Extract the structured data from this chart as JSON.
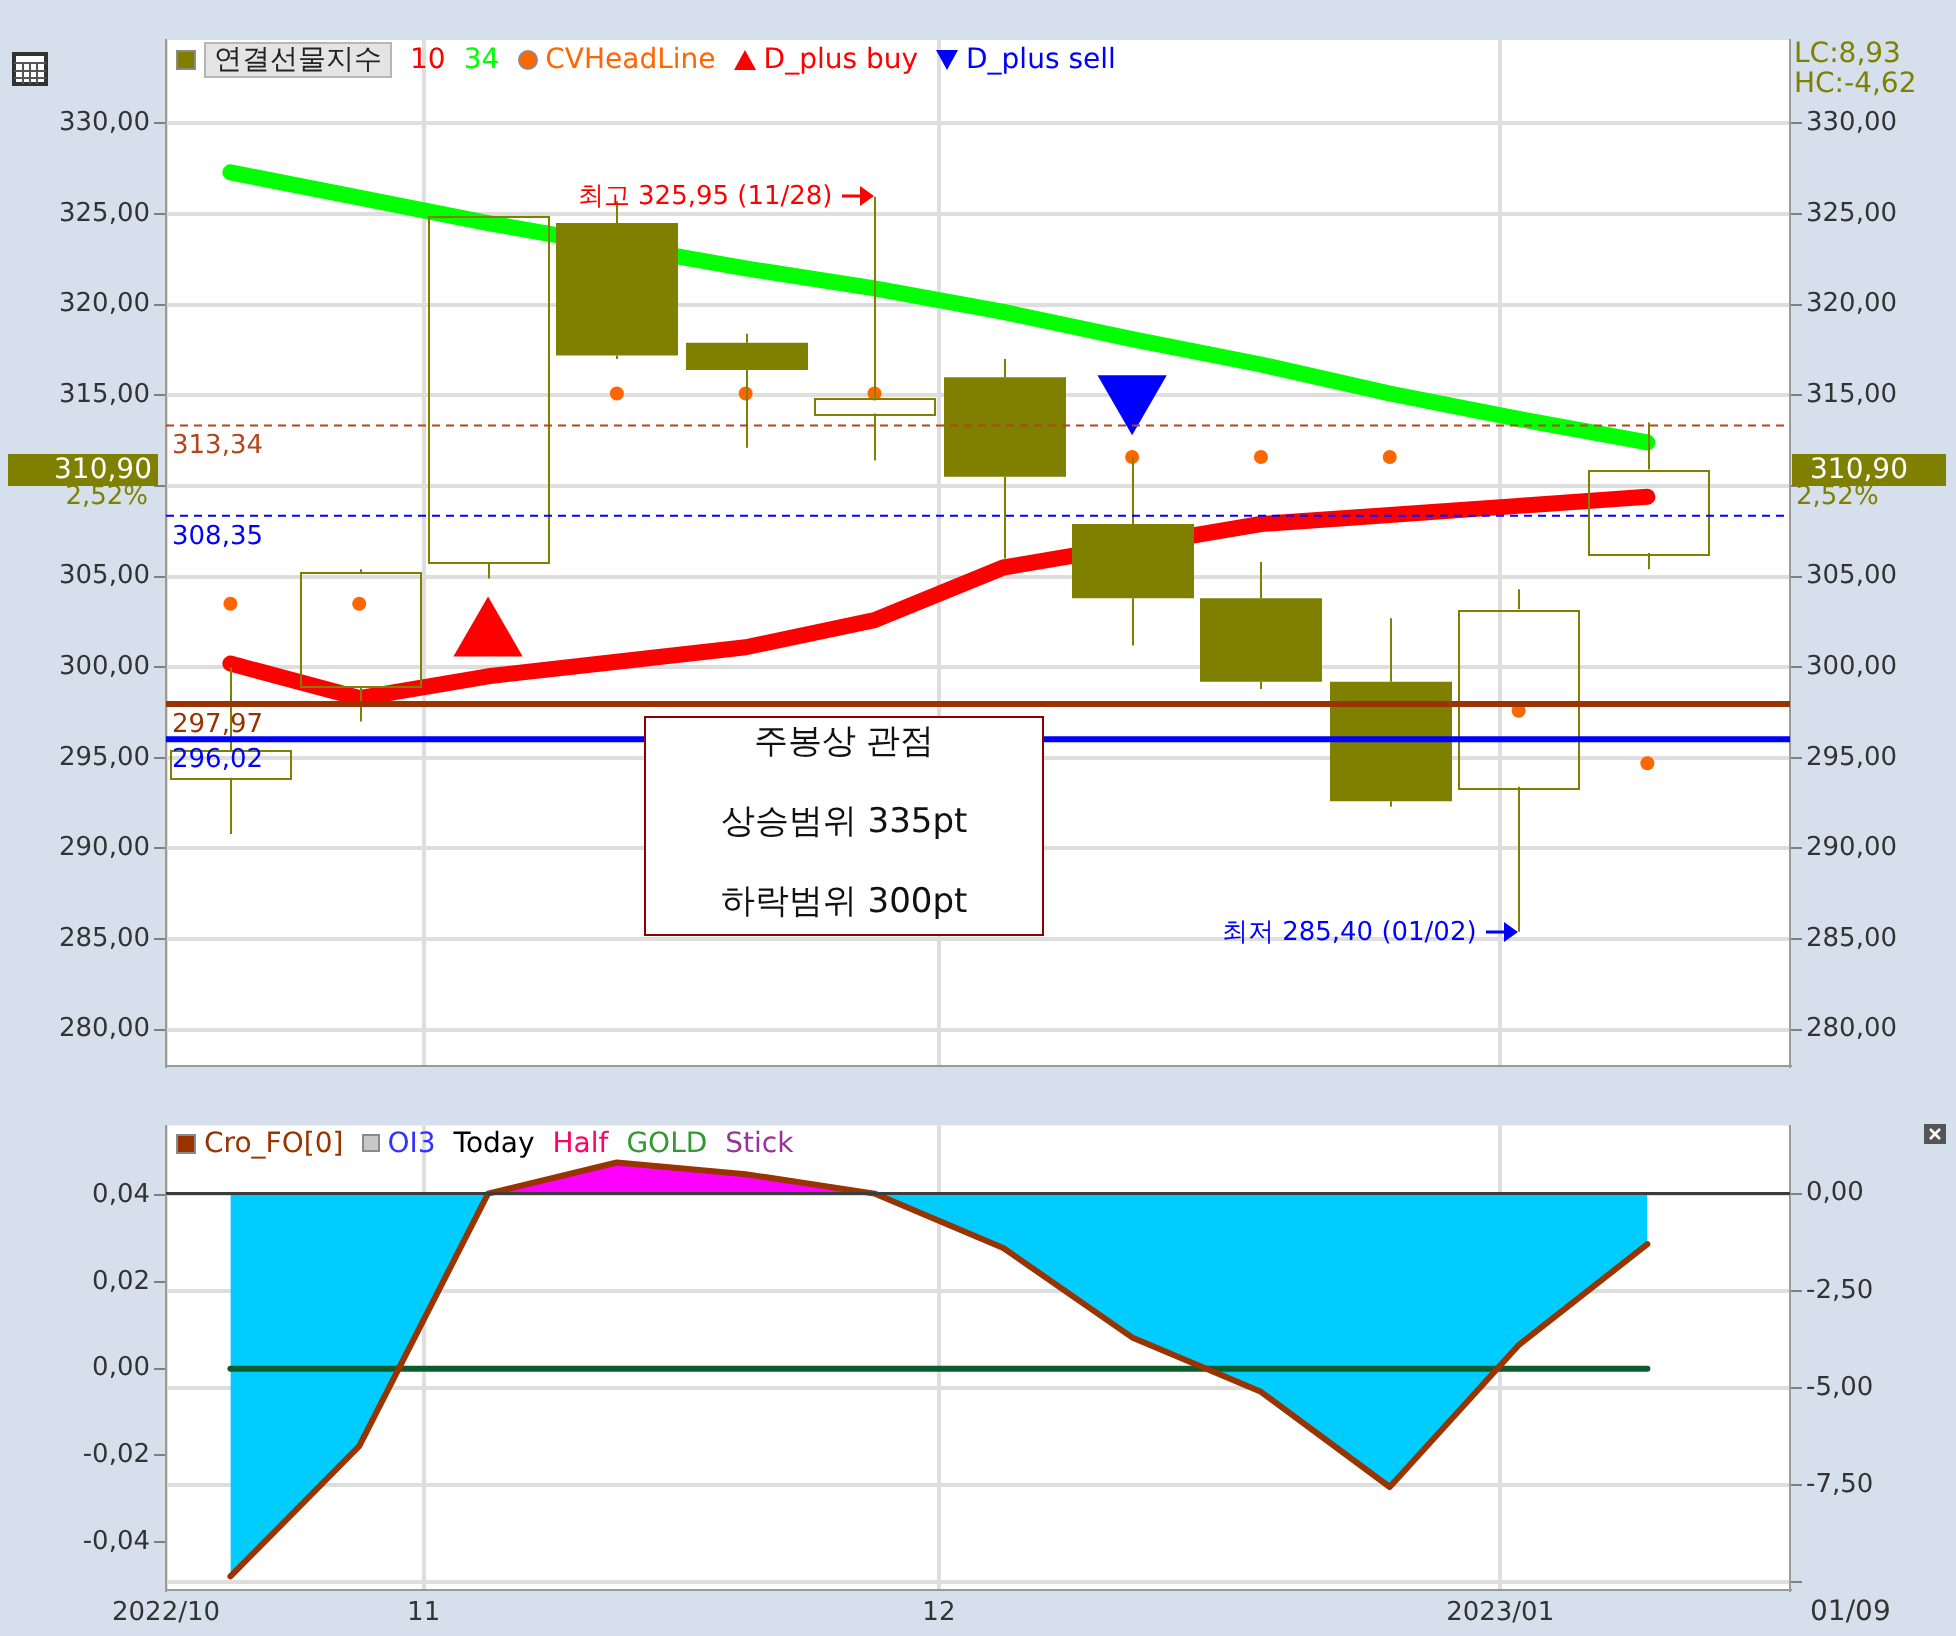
{
  "chart_data": [
    {
      "type": "candlestick",
      "x": [
        "2022-10-24",
        "2022-10-31",
        "2022-11-07",
        "2022-11-14",
        "2022-11-21",
        "2022-11-28",
        "2022-12-05",
        "2022-12-12",
        "2022-12-19",
        "2022-12-26",
        "2023-01-02",
        "2023-01-09"
      ],
      "xlim": [
        "2022-10-20T12:00",
        "2023-01-16T18:00"
      ],
      "xticks": [
        {
          "value": "2022-10-20T12:00",
          "label": null
        },
        {
          "value": "2022-11-03T12:00",
          "label": null
        },
        {
          "value": "2022-12-01T12:00",
          "label": null
        },
        {
          "value": "2023-01-01",
          "label": null
        }
      ],
      "ylim": [
        278,
        334.6
      ],
      "yticks": [
        {
          "value": 330,
          "label": "330,00"
        },
        {
          "value": 325,
          "label": "325,00"
        },
        {
          "value": 320,
          "label": "320,00"
        },
        {
          "value": 315,
          "label": "315,00"
        },
        {
          "value": 310,
          "label": null
        },
        {
          "value": 305,
          "label": "305,00"
        },
        {
          "value": 300,
          "label": "300,00"
        },
        {
          "value": 295,
          "label": "295,00"
        },
        {
          "value": 290,
          "label": "290,00"
        },
        {
          "value": 285,
          "label": "285,00"
        },
        {
          "value": 280,
          "label": "280,00"
        }
      ],
      "y2lim": [
        278,
        334.6
      ],
      "y2ticks": [
        {
          "value": 330,
          "label": "330,00"
        },
        {
          "value": 325,
          "label": "325,00"
        },
        {
          "value": 320,
          "label": "320,00"
        },
        {
          "value": 315,
          "label": "315,00"
        },
        {
          "value": 310,
          "label": null
        },
        {
          "value": 305,
          "label": "305,00"
        },
        {
          "value": 300,
          "label": "300,00"
        },
        {
          "value": 295,
          "label": "295,00"
        },
        {
          "value": 290,
          "label": "290,00"
        },
        {
          "value": 285,
          "label": "285,00"
        },
        {
          "value": 280,
          "label": "280,00"
        }
      ],
      "tick_labels": "y",
      "grid": true,
      "legend": "top left",
      "series": [
        {
          "name": "연결선물지수",
          "color": "#808000",
          "ohlc": [
            [
              293.9,
              300.0,
              290.8,
              295.4
            ],
            [
              298.9,
              305.4,
              297.0,
              305.2
            ],
            [
              305.8,
              324.9,
              304.9,
              324.9
            ],
            [
              324.5,
              325.7,
              317.0,
              317.2
            ],
            [
              317.9,
              318.4,
              312.1,
              316.4
            ],
            [
              314.0,
              325.95,
              311.4,
              314.9
            ],
            [
              316.0,
              317.0,
              306.0,
              310.5
            ],
            [
              307.9,
              311.6,
              301.2,
              303.8
            ],
            [
              303.8,
              305.8,
              298.8,
              299.2
            ],
            [
              299.2,
              302.7,
              292.3,
              292.6
            ],
            [
              293.4,
              304.3,
              285.4,
              303.2
            ],
            [
              306.3,
              313.5,
              305.4,
              310.9
            ]
          ]
        },
        {
          "name": "10",
          "type": "line",
          "color": "#ff0000",
          "values": [
            300.2,
            298.3,
            299.5,
            300.3,
            301.1,
            302.6,
            305.5,
            null,
            307.9,
            308.4,
            308.9,
            309.4
          ]
        },
        {
          "name": "34",
          "type": "line",
          "color": "#00ff00",
          "values": [
            327.3,
            325.9,
            324.5,
            null,
            322.0,
            320.9,
            319.6,
            318.1,
            316.7,
            315.1,
            313.7,
            312.4
          ]
        },
        {
          "name": "CVHeadLine",
          "type": "scatter",
          "color": "#ff6600",
          "marker": "circle",
          "values": [
            303.5,
            303.5,
            null,
            315.1,
            315.1,
            315.1,
            null,
            311.6,
            311.6,
            311.6,
            297.6,
            294.7
          ]
        },
        {
          "name": "D_plus buy",
          "type": "scatter",
          "color": "#ff0000",
          "marker": "triangle",
          "values": [
            null,
            null,
            301.7,
            null,
            null,
            null,
            null,
            null,
            null,
            null,
            null,
            null
          ]
        },
        {
          "name": "D_plus sell",
          "type": "scatter",
          "color": "#0000ff",
          "marker": "triangle",
          "values": [
            null,
            null,
            null,
            null,
            null,
            null,
            null,
            315.0,
            null,
            null,
            null,
            null
          ]
        }
      ],
      "ref_lines": [
        {
          "axis": "y",
          "value": 313.34,
          "label": "313,34",
          "color": "#b5451b",
          "line_style": "dashed"
        },
        {
          "axis": "y",
          "value": 308.35,
          "label": "308,35",
          "color": "#0000ff",
          "line_style": "dashed"
        },
        {
          "axis": "y",
          "value": 297.97,
          "label": "297,97",
          "color": "#993300",
          "line_style": "solid"
        },
        {
          "axis": "y",
          "value": 296.02,
          "label": "296,02",
          "color": "#0000ff",
          "line_style": "solid"
        }
      ],
      "annotations": [
        {
          "text": "최고 325,95 (11/28)",
          "x": "2022-11-28",
          "y": 325.95
        },
        {
          "text": "최저 285,40 (01/02)",
          "x": "2023-01-02",
          "y": 285.4
        },
        "310,90",
        "2,52%",
        "LC:8,93",
        "HC:-4,62",
        "주봉상 관점",
        "상승범위 335pt",
        "하락범위 300pt"
      ]
    },
    {
      "type": "area",
      "x": [
        "2022-10-24",
        "2022-10-31",
        "2022-11-07",
        "2022-11-14",
        "2022-11-21",
        "2022-11-28",
        "2022-12-05",
        "2022-12-12",
        "2022-12-19",
        "2022-12-26",
        "2023-01-02",
        "2023-01-09"
      ],
      "xlim": [
        "2022-10-20T12:00",
        "2023-01-16T18:00"
      ],
      "xticks": [
        {
          "value": "2022-10-20T12:00",
          "label": "2022/10"
        },
        {
          "value": "2022-11-03T12:00",
          "label": "11"
        },
        {
          "value": "2022-12-01T12:00",
          "label": "12"
        },
        {
          "value": "2023-01-01",
          "label": "2023/01"
        }
      ],
      "ylim": [
        -0.051,
        0.056
      ],
      "yticks": [
        {
          "value": 0.04,
          "label": "0,04"
        },
        {
          "value": 0.02,
          "label": "0,02"
        },
        {
          "value": 0,
          "label": "0,00"
        },
        {
          "value": -0.02,
          "label": "-0,02"
        },
        {
          "value": -0.04,
          "label": "-0,04"
        }
      ],
      "y2lim": [
        -10.2,
        1.75
      ],
      "y2ticks": [
        {
          "value": 0,
          "label": "0,00"
        },
        {
          "value": -2.5,
          "label": "-2,50"
        },
        {
          "value": -5,
          "label": "-5,00"
        },
        {
          "value": -7.5,
          "label": "-7,50"
        },
        {
          "value": -10,
          "label": null
        }
      ],
      "grid": true,
      "legend": "top left",
      "series": [
        {
          "axis": "y2",
          "color": "#ff00ff",
          "values": [
            null,
            null,
            0,
            0.8,
            0.5,
            0,
            null,
            null,
            null,
            null,
            null,
            null
          ]
        },
        {
          "axis": "y2",
          "color": "#00ccff",
          "values": [
            -9.85,
            -6.5,
            0,
            null,
            null,
            0,
            -1.4,
            -3.7,
            -5.1,
            -7.55,
            -3.9,
            -1.3
          ]
        },
        {
          "name": "Cro_FO[0]",
          "type": "line",
          "axis": "y2",
          "color": "#993300",
          "values": [
            -9.85,
            -6.5,
            0,
            0.8,
            0.5,
            0,
            -1.4,
            -3.7,
            -5.1,
            -7.55,
            -3.9,
            -1.3
          ]
        },
        {
          "type": "line",
          "color": "#0d5c2c",
          "values": [
            0,
            0,
            0,
            0,
            0,
            0,
            0,
            0,
            0,
            0,
            0,
            0
          ]
        }
      ],
      "ref_lines": [
        {
          "axis": "y2",
          "value": 0,
          "color": "#3c3c3c"
        }
      ],
      "annotations": [
        "OI3",
        "Today",
        "Half",
        "GOLD",
        "Stick",
        "01/09"
      ]
    }
  ]
}
